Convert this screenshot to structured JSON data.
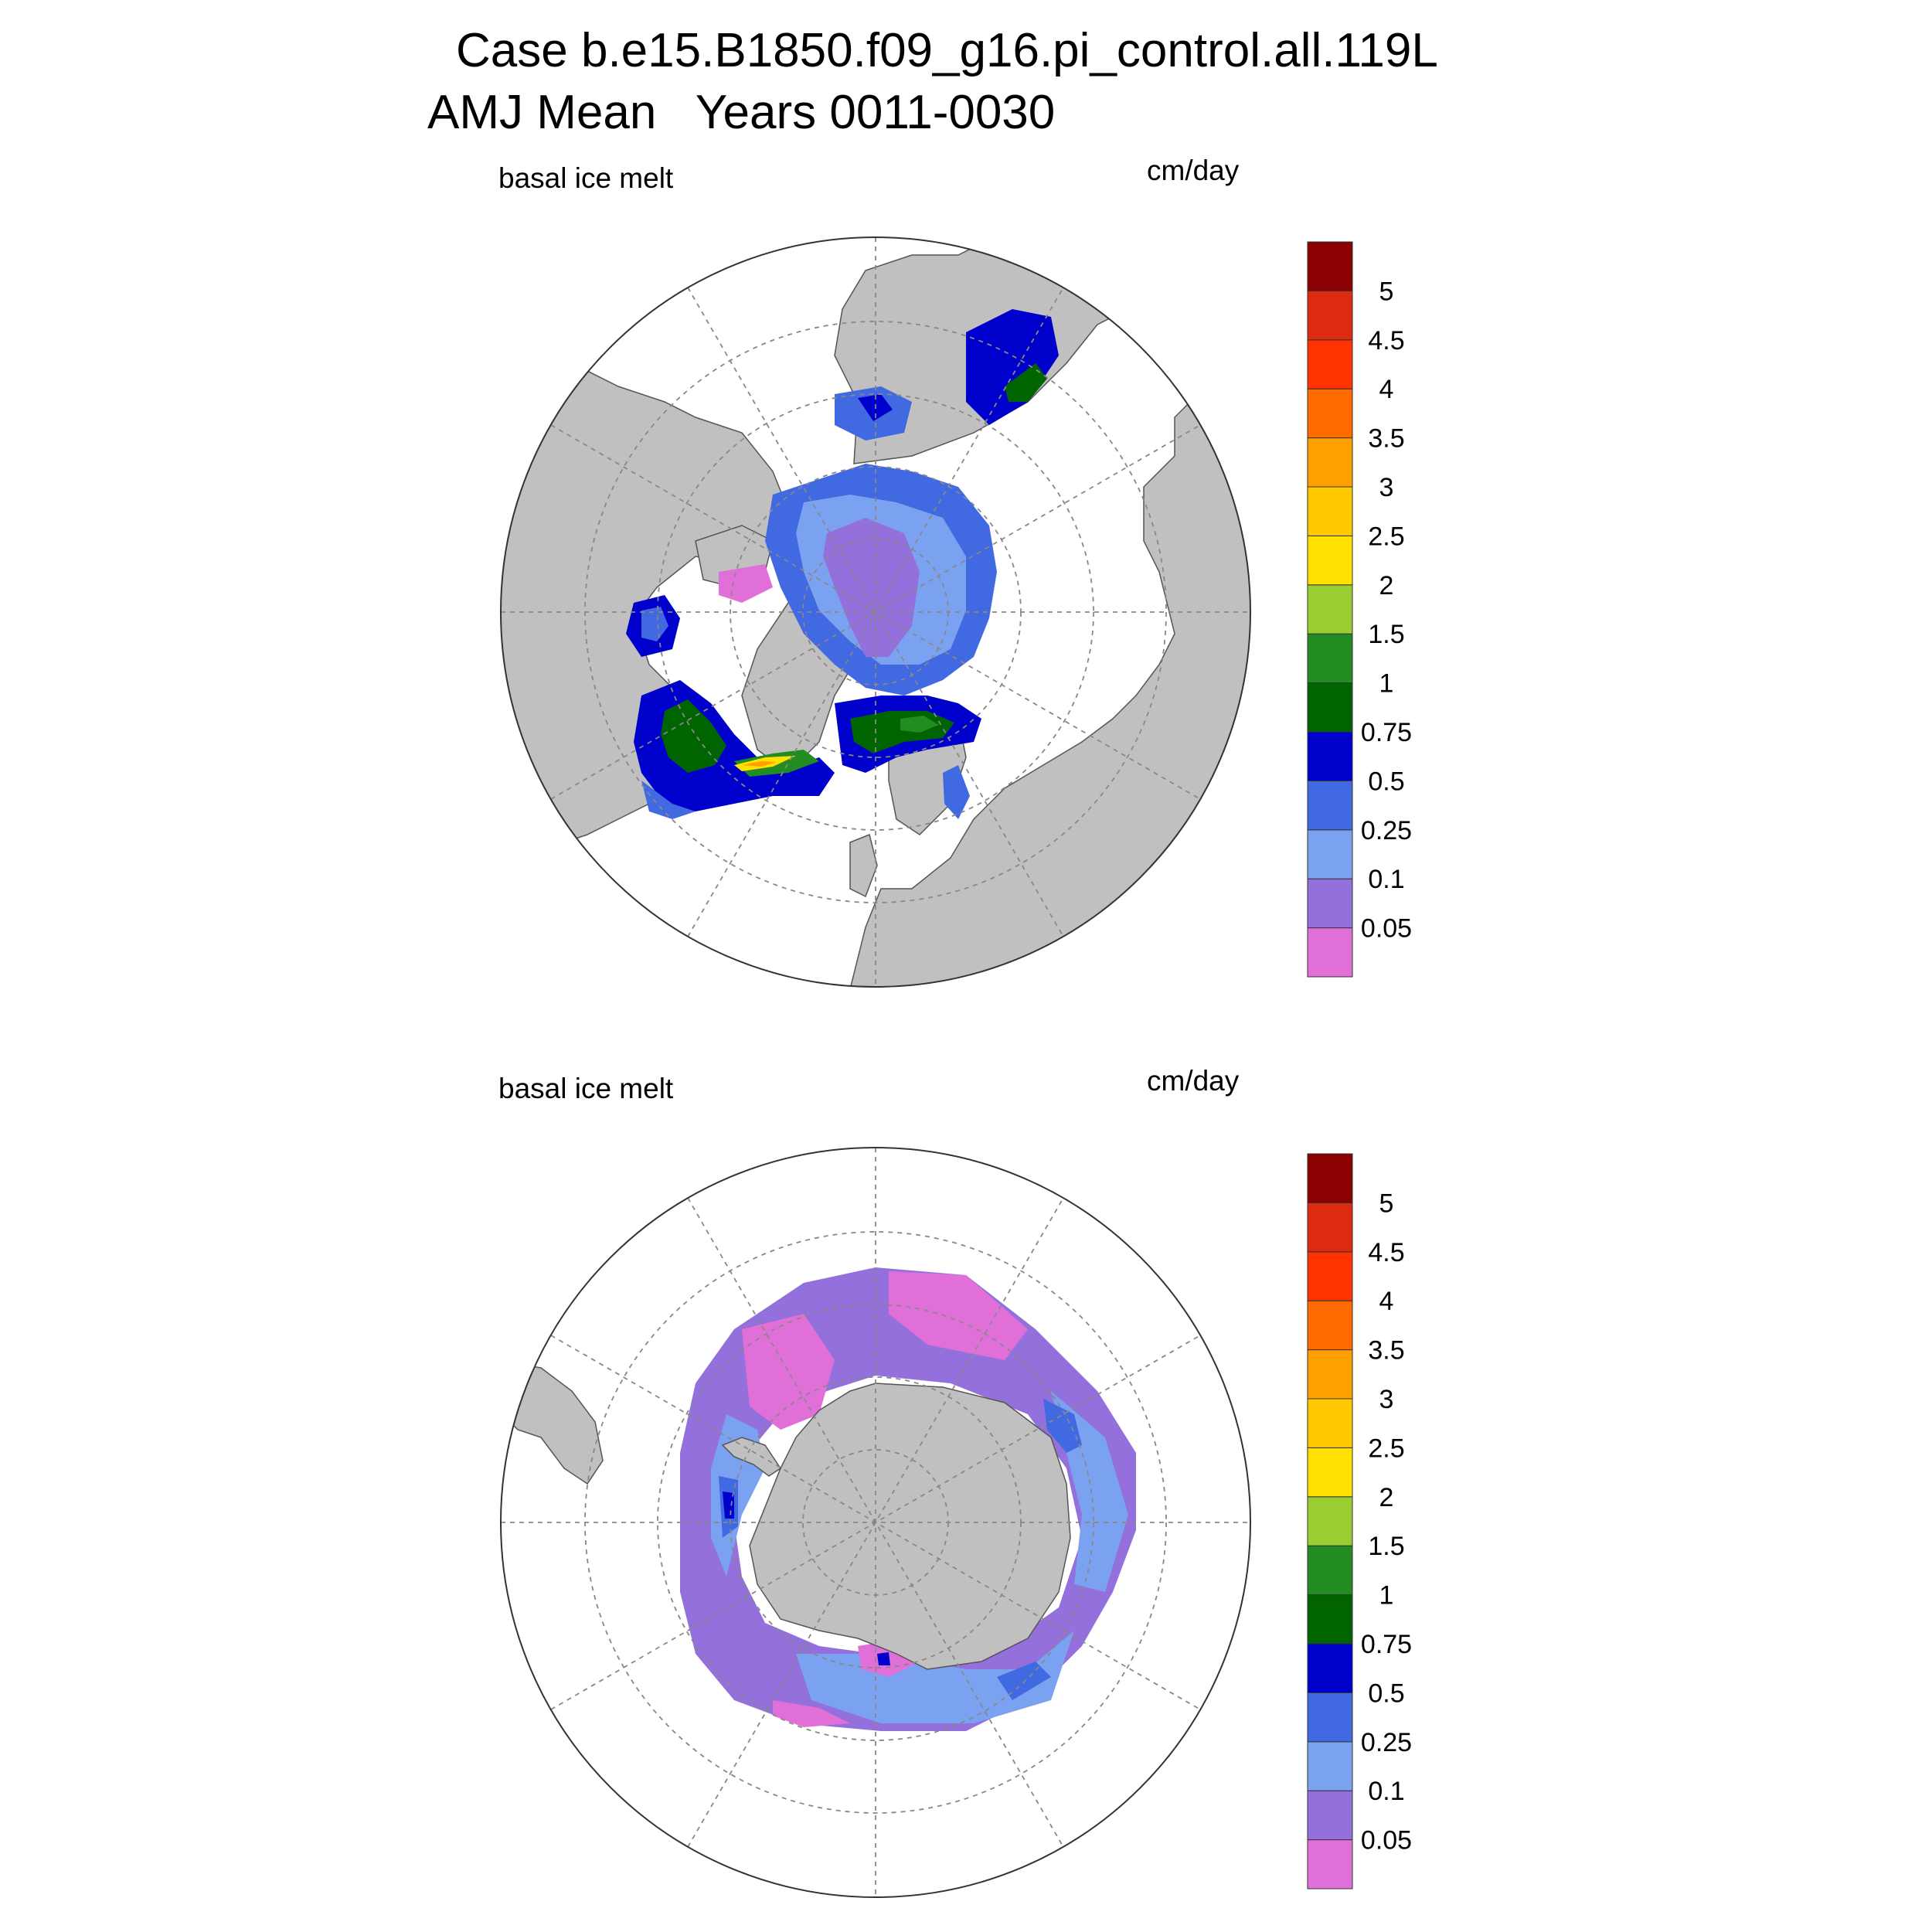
{
  "title": {
    "line1": "Case b.e15.B1850.f09_g16.pi_control.all.119L",
    "line2": "AMJ Mean   Years 0011-0030"
  },
  "panels": [
    {
      "name": "north",
      "left_label": "basal ice melt",
      "right_label": "cm/day"
    },
    {
      "name": "south",
      "left_label": "basal ice melt",
      "right_label": "cm/day"
    }
  ],
  "colorbar": {
    "colors": [
      "#e070d8",
      "#9370db",
      "#7aa2f0",
      "#4169e1",
      "#0000cd",
      "#006400",
      "#228b22",
      "#9acd32",
      "#ffe000",
      "#ffc800",
      "#ffa000",
      "#ff6a00",
      "#ff3300",
      "#dd2b12",
      "#8b0000"
    ],
    "labels": [
      "0.05",
      "0.1",
      "0.25",
      "0.5",
      "0.75",
      "1",
      "1.5",
      "2",
      "2.5",
      "3",
      "3.5",
      "4",
      "4.5",
      "5"
    ]
  },
  "chart_data": {
    "type": "heatmap",
    "variable": "basal ice melt",
    "units": "cm/day",
    "levels": [
      0.05,
      0.1,
      0.25,
      0.5,
      0.75,
      1,
      1.5,
      2,
      2.5,
      3,
      3.5,
      4,
      4.5,
      5
    ]
  }
}
